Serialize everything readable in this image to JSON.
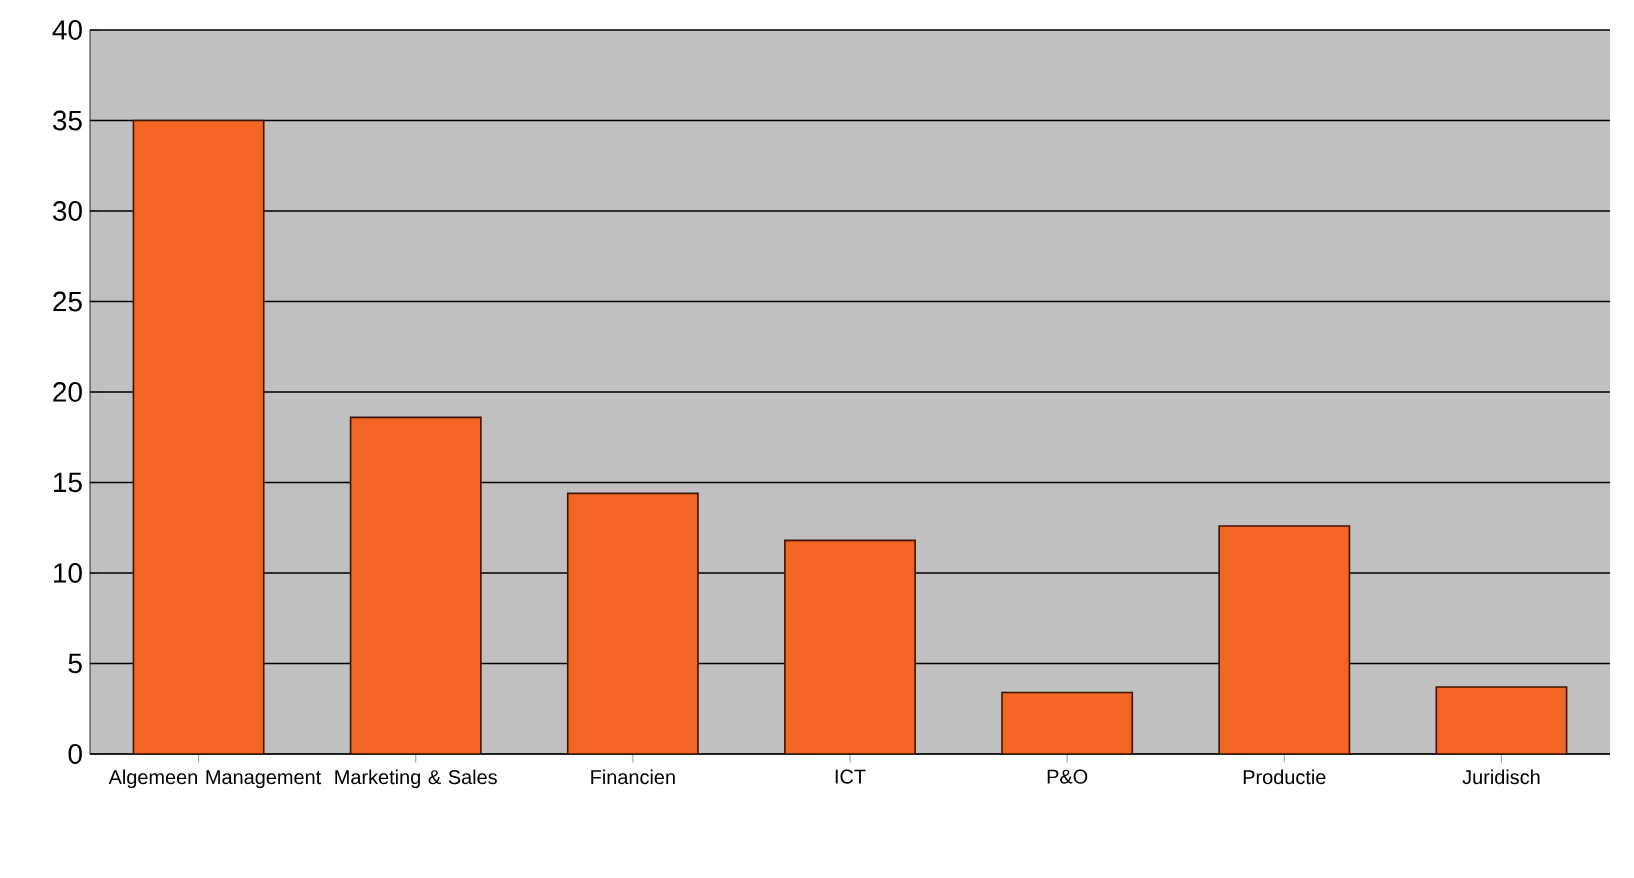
{
  "chart_data": {
    "type": "bar",
    "categories": [
      "Algemeen Management",
      "Marketing & Sales",
      "Financien",
      "ICT",
      "P&O",
      "Productie",
      "Juridisch"
    ],
    "values": [
      35,
      18.6,
      14.4,
      11.8,
      3.4,
      12.6,
      3.7
    ],
    "color": "#f26522",
    "ylim": [
      0,
      40
    ],
    "yticks": [
      0,
      5,
      10,
      15,
      20,
      25,
      30,
      35,
      40
    ],
    "grid": "y"
  }
}
